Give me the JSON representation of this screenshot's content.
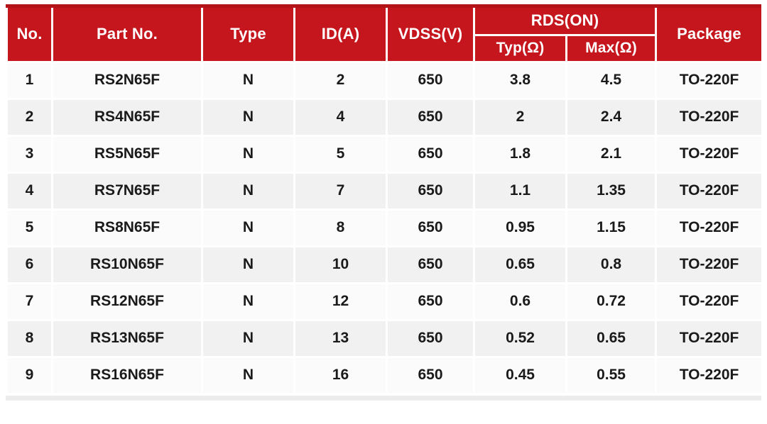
{
  "table": {
    "columns": [
      {
        "label": "No."
      },
      {
        "label": "Part No."
      },
      {
        "label": "Type"
      },
      {
        "label": "ID(A)"
      },
      {
        "label": "VDSS(V)"
      },
      {
        "label": "RDS(ON)",
        "subcolumns": [
          {
            "label": "Typ(Ω)"
          },
          {
            "label": "Max(Ω)"
          }
        ]
      },
      {
        "label": "Package"
      }
    ],
    "rows": [
      [
        "1",
        "RS2N65F",
        "N",
        "2",
        "650",
        "3.8",
        "4.5",
        "TO-220F"
      ],
      [
        "2",
        "RS4N65F",
        "N",
        "4",
        "650",
        "2",
        "2.4",
        "TO-220F"
      ],
      [
        "3",
        "RS5N65F",
        "N",
        "5",
        "650",
        "1.8",
        "2.1",
        "TO-220F"
      ],
      [
        "4",
        "RS7N65F",
        "N",
        "7",
        "650",
        "1.1",
        "1.35",
        "TO-220F"
      ],
      [
        "5",
        "RS8N65F",
        "N",
        "8",
        "650",
        "0.95",
        "1.15",
        "TO-220F"
      ],
      [
        "6",
        "RS10N65F",
        "N",
        "10",
        "650",
        "0.65",
        "0.8",
        "TO-220F"
      ],
      [
        "7",
        "RS12N65F",
        "N",
        "12",
        "650",
        "0.6",
        "0.72",
        "TO-220F"
      ],
      [
        "8",
        "RS13N65F",
        "N",
        "13",
        "650",
        "0.52",
        "0.65",
        "TO-220F"
      ],
      [
        "9",
        "RS16N65F",
        "N",
        "16",
        "650",
        "0.45",
        "0.55",
        "TO-220F"
      ]
    ],
    "colors": {
      "header_bg": "#c5161d",
      "header_accent": "#b2141a",
      "header_text": "#ffffff",
      "row_bg": "#fbfbfb",
      "row_alt_bg": "#f1f1f1",
      "grid": "#ffffff",
      "body_text": "#1a1a1a",
      "bottom_strip": "#ececec"
    }
  }
}
